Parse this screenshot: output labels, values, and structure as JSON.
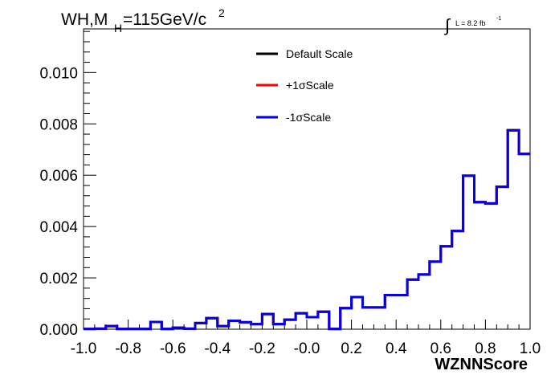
{
  "chart_data": {
    "type": "line",
    "title_main": "WH,M",
    "title_sub": "H",
    "title_rest": "=115GeV/c",
    "title_sup": "2",
    "lumi_integral": "∫",
    "lumi_text": "L = 8.2 fb",
    "lumi_sup": "-1",
    "xlabel": "WZNNScore",
    "xlim": [
      -1.0,
      1.0
    ],
    "ylim": [
      0.0,
      0.0117
    ],
    "x_tick_labels": [
      "-1.0",
      "-0.8",
      "-0.6",
      "-0.4",
      "-0.2",
      "-0.0",
      "0.2",
      "0.4",
      "0.6",
      "0.8",
      "1.0"
    ],
    "x_tick_values": [
      -1.0,
      -0.8,
      -0.6,
      -0.4,
      -0.2,
      0.0,
      0.2,
      0.4,
      0.6,
      0.8,
      1.0
    ],
    "y_tick_labels": [
      "0.000",
      "0.002",
      "0.004",
      "0.006",
      "0.008",
      "0.010"
    ],
    "y_tick_values": [
      0.0,
      0.002,
      0.004,
      0.006,
      0.008,
      0.01
    ],
    "bin_edges": [
      -1.0,
      -0.95,
      -0.9,
      -0.85,
      -0.8,
      -0.75,
      -0.7,
      -0.65,
      -0.6,
      -0.55,
      -0.5,
      -0.45,
      -0.4,
      -0.35,
      -0.3,
      -0.25,
      -0.2,
      -0.15,
      -0.1,
      -0.05,
      0.0,
      0.05,
      0.1,
      0.15,
      0.2,
      0.25,
      0.3,
      0.35,
      0.4,
      0.45,
      0.5,
      0.55,
      0.6,
      0.65,
      0.7,
      0.75,
      0.8,
      0.85,
      0.9,
      0.95,
      1.0
    ],
    "series": [
      {
        "name": "Default Scale",
        "color": "#000000",
        "values": [
          1e-05,
          2e-05,
          0.00012,
          1e-05,
          1e-05,
          1e-05,
          0.00028,
          1e-05,
          6e-05,
          2e-05,
          0.00024,
          0.00043,
          0.00012,
          0.00033,
          0.00027,
          0.0002,
          0.00059,
          0.0002,
          0.00037,
          0.00062,
          0.00047,
          0.00068,
          1e-05,
          0.00082,
          0.00125,
          0.00085,
          0.00085,
          0.00133,
          0.00133,
          0.00193,
          0.00213,
          0.00263,
          0.00323,
          0.00383,
          0.00598,
          0.00495,
          0.0049,
          0.00555,
          0.00775,
          0.00683
        ]
      },
      {
        "name": "+1σScale",
        "color": "#ff0000",
        "values": [
          1e-05,
          2e-05,
          0.00012,
          1e-05,
          1e-05,
          1e-05,
          0.00028,
          1e-05,
          6e-05,
          2e-05,
          0.00024,
          0.00043,
          0.00012,
          0.00033,
          0.00027,
          0.0002,
          0.00059,
          0.0002,
          0.00037,
          0.00062,
          0.00047,
          0.00068,
          1e-05,
          0.00082,
          0.00125,
          0.00085,
          0.00085,
          0.00133,
          0.00133,
          0.00193,
          0.00213,
          0.00263,
          0.00323,
          0.00383,
          0.00598,
          0.00495,
          0.0049,
          0.00555,
          0.00775,
          0.00683
        ]
      },
      {
        "name": "-1σScale",
        "color": "#0000ee",
        "values": [
          1e-05,
          2e-05,
          0.00012,
          1e-05,
          1e-05,
          1e-05,
          0.00028,
          1e-05,
          6e-05,
          2e-05,
          0.00024,
          0.00043,
          0.00012,
          0.00033,
          0.00027,
          0.0002,
          0.00059,
          0.0002,
          0.00037,
          0.00062,
          0.00047,
          0.00068,
          1e-05,
          0.00082,
          0.00125,
          0.00085,
          0.00085,
          0.00133,
          0.00133,
          0.00193,
          0.00213,
          0.00263,
          0.00323,
          0.00383,
          0.00598,
          0.00495,
          0.0049,
          0.00555,
          0.00775,
          0.00683
        ]
      }
    ],
    "legend_position": "top-center"
  }
}
